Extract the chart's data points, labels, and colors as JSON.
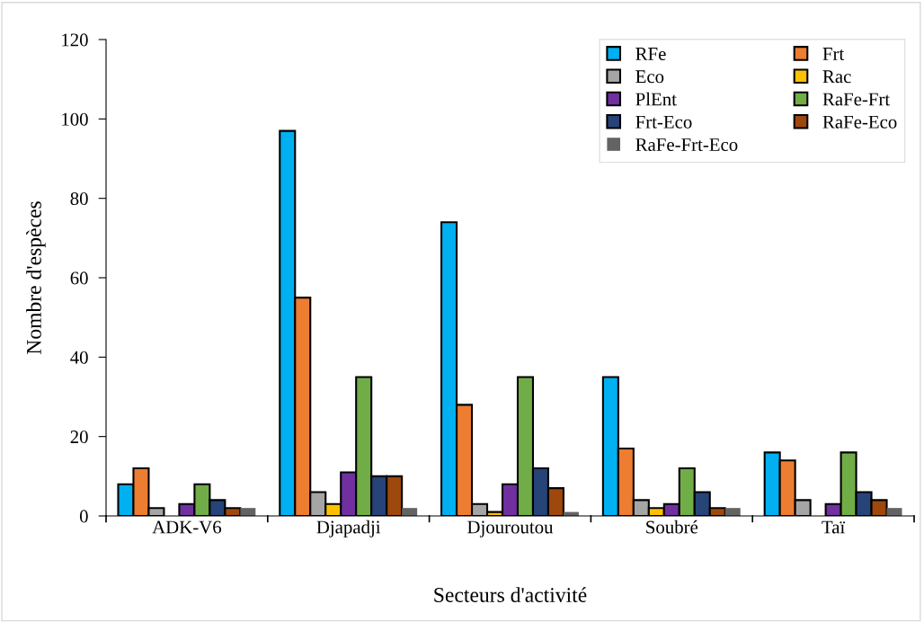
{
  "chart_data": {
    "type": "bar",
    "xlabel": "Secteurs d'activité",
    "ylabel": "Nombre d'espèces",
    "categories": [
      "ADK-V6",
      "Djapadji",
      "Djouroutou",
      "Soubré",
      "Taï"
    ],
    "series": [
      {
        "name": "RFe",
        "color": "#00b0f0",
        "values": [
          8,
          97,
          74,
          35,
          16
        ]
      },
      {
        "name": "Frt",
        "color": "#ed7d31",
        "values": [
          12,
          55,
          28,
          17,
          14
        ]
      },
      {
        "name": "Eco",
        "color": "#a5a5a5",
        "values": [
          2,
          6,
          3,
          4,
          4
        ]
      },
      {
        "name": "Rac",
        "color": "#ffc000",
        "values": [
          0,
          3,
          1,
          2,
          0
        ]
      },
      {
        "name": "PlEnt",
        "color": "#7030a0",
        "values": [
          3,
          11,
          8,
          3,
          3
        ]
      },
      {
        "name": "RaFe-Frt",
        "color": "#70ad47",
        "values": [
          8,
          35,
          35,
          12,
          16
        ]
      },
      {
        "name": "Frt-Eco",
        "color": "#264478",
        "values": [
          4,
          10,
          12,
          6,
          6
        ]
      },
      {
        "name": "RaFe-Eco",
        "color": "#9e480e",
        "values": [
          2,
          10,
          7,
          2,
          4
        ]
      },
      {
        "name": "RaFe-Frt-Eco",
        "color": "#636363",
        "values": [
          2,
          2,
          1,
          2,
          2
        ]
      }
    ],
    "ylim": [
      0,
      120
    ],
    "yticks": [
      0,
      20,
      40,
      60,
      80,
      100,
      120
    ],
    "grid": false,
    "legend": "top right"
  }
}
